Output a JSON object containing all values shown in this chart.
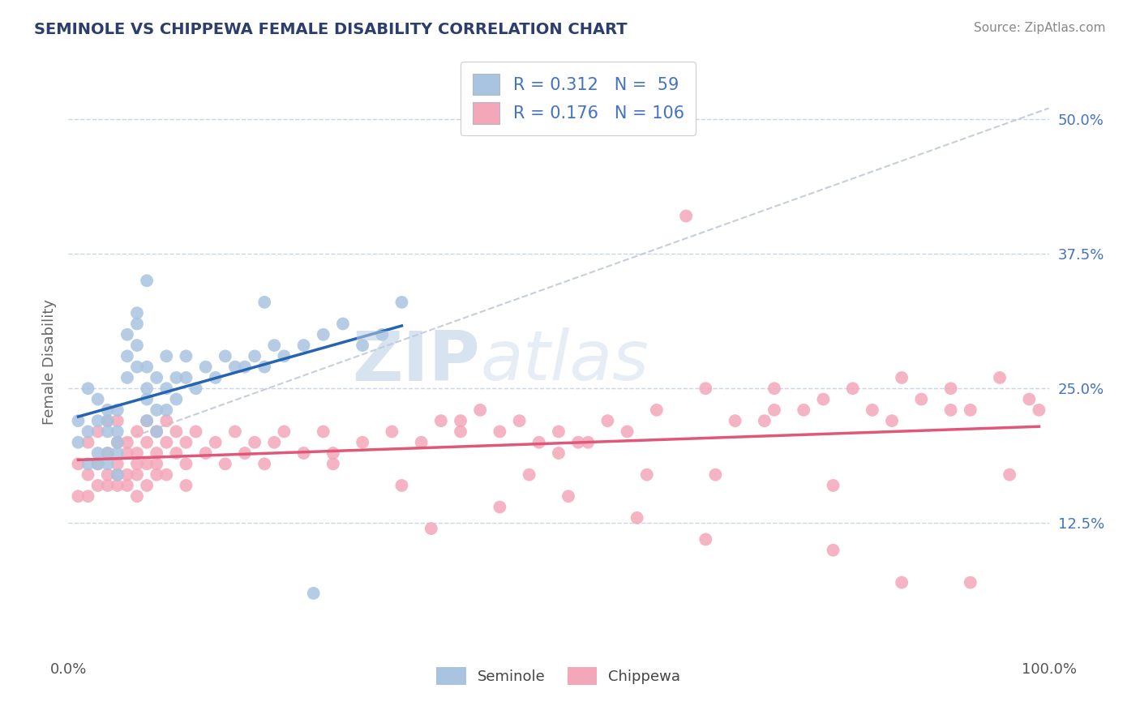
{
  "title": "SEMINOLE VS CHIPPEWA FEMALE DISABILITY CORRELATION CHART",
  "source": "Source: ZipAtlas.com",
  "ylabel": "Female Disability",
  "xlim": [
    0.0,
    1.0
  ],
  "ylim": [
    0.0,
    0.55
  ],
  "xticks": [
    0.0,
    1.0
  ],
  "xticklabels": [
    "0.0%",
    "100.0%"
  ],
  "yticks": [
    0.125,
    0.25,
    0.375,
    0.5
  ],
  "yticklabels": [
    "12.5%",
    "25.0%",
    "37.5%",
    "50.0%"
  ],
  "seminole_R": 0.312,
  "seminole_N": 59,
  "chippewa_R": 0.176,
  "chippewa_N": 106,
  "seminole_color": "#a8c4e0",
  "chippewa_color": "#f4a7b9",
  "seminole_line_color": "#2464b0",
  "chippewa_line_color": "#e05878",
  "trend_line_color": "#c0c8d8",
  "background_color": "#ffffff",
  "grid_color": "#c8d4e8",
  "watermark_zip": "ZIP",
  "watermark_atlas": "atlas",
  "legend_seminole_label": "R = 0.312   N =  59",
  "legend_chippewa_label": "R = 0.176   N = 106",
  "bottom_legend_seminole": "Seminole",
  "bottom_legend_chippewa": "Chippewa",
  "seminole_x": [
    0.01,
    0.01,
    0.02,
    0.02,
    0.02,
    0.03,
    0.03,
    0.03,
    0.03,
    0.04,
    0.04,
    0.04,
    0.04,
    0.04,
    0.05,
    0.05,
    0.05,
    0.05,
    0.05,
    0.06,
    0.06,
    0.06,
    0.07,
    0.07,
    0.07,
    0.07,
    0.08,
    0.08,
    0.08,
    0.08,
    0.09,
    0.09,
    0.09,
    0.1,
    0.1,
    0.1,
    0.11,
    0.11,
    0.12,
    0.12,
    0.13,
    0.14,
    0.15,
    0.16,
    0.17,
    0.18,
    0.19,
    0.2,
    0.21,
    0.22,
    0.24,
    0.26,
    0.28,
    0.3,
    0.32,
    0.34,
    0.08,
    0.2,
    0.25
  ],
  "seminole_y": [
    0.2,
    0.22,
    0.18,
    0.21,
    0.25,
    0.19,
    0.22,
    0.18,
    0.24,
    0.21,
    0.23,
    0.19,
    0.22,
    0.18,
    0.2,
    0.23,
    0.19,
    0.21,
    0.17,
    0.28,
    0.26,
    0.3,
    0.32,
    0.29,
    0.27,
    0.31,
    0.24,
    0.27,
    0.22,
    0.25,
    0.23,
    0.26,
    0.21,
    0.25,
    0.28,
    0.23,
    0.26,
    0.24,
    0.26,
    0.28,
    0.25,
    0.27,
    0.26,
    0.28,
    0.27,
    0.27,
    0.28,
    0.27,
    0.29,
    0.28,
    0.29,
    0.3,
    0.31,
    0.29,
    0.3,
    0.33,
    0.35,
    0.33,
    0.06
  ],
  "chippewa_x": [
    0.01,
    0.01,
    0.02,
    0.02,
    0.02,
    0.03,
    0.03,
    0.03,
    0.04,
    0.04,
    0.04,
    0.04,
    0.05,
    0.05,
    0.05,
    0.05,
    0.05,
    0.06,
    0.06,
    0.06,
    0.06,
    0.07,
    0.07,
    0.07,
    0.07,
    0.07,
    0.08,
    0.08,
    0.08,
    0.08,
    0.09,
    0.09,
    0.09,
    0.09,
    0.1,
    0.1,
    0.1,
    0.11,
    0.11,
    0.12,
    0.12,
    0.12,
    0.13,
    0.14,
    0.15,
    0.16,
    0.17,
    0.18,
    0.19,
    0.2,
    0.21,
    0.22,
    0.24,
    0.26,
    0.27,
    0.3,
    0.33,
    0.36,
    0.38,
    0.4,
    0.42,
    0.44,
    0.46,
    0.48,
    0.5,
    0.52,
    0.55,
    0.57,
    0.6,
    0.63,
    0.65,
    0.68,
    0.72,
    0.75,
    0.77,
    0.8,
    0.82,
    0.85,
    0.87,
    0.9,
    0.92,
    0.95,
    0.27,
    0.34,
    0.4,
    0.47,
    0.53,
    0.59,
    0.66,
    0.72,
    0.78,
    0.84,
    0.9,
    0.96,
    0.99,
    0.37,
    0.44,
    0.51,
    0.58,
    0.65,
    0.71,
    0.78,
    0.85,
    0.92,
    0.98,
    0.5
  ],
  "chippewa_y": [
    0.15,
    0.18,
    0.17,
    0.2,
    0.15,
    0.18,
    0.16,
    0.21,
    0.17,
    0.19,
    0.16,
    0.22,
    0.18,
    0.2,
    0.16,
    0.17,
    0.22,
    0.19,
    0.17,
    0.2,
    0.16,
    0.19,
    0.17,
    0.21,
    0.18,
    0.15,
    0.2,
    0.18,
    0.22,
    0.16,
    0.19,
    0.17,
    0.21,
    0.18,
    0.2,
    0.17,
    0.22,
    0.19,
    0.21,
    0.18,
    0.2,
    0.16,
    0.21,
    0.19,
    0.2,
    0.18,
    0.21,
    0.19,
    0.2,
    0.18,
    0.2,
    0.21,
    0.19,
    0.21,
    0.18,
    0.2,
    0.21,
    0.2,
    0.22,
    0.21,
    0.23,
    0.21,
    0.22,
    0.2,
    0.21,
    0.2,
    0.22,
    0.21,
    0.23,
    0.41,
    0.25,
    0.22,
    0.25,
    0.23,
    0.24,
    0.25,
    0.23,
    0.26,
    0.24,
    0.25,
    0.23,
    0.26,
    0.19,
    0.16,
    0.22,
    0.17,
    0.2,
    0.17,
    0.17,
    0.23,
    0.16,
    0.22,
    0.23,
    0.17,
    0.23,
    0.12,
    0.14,
    0.15,
    0.13,
    0.11,
    0.22,
    0.1,
    0.07,
    0.07,
    0.24,
    0.19
  ]
}
